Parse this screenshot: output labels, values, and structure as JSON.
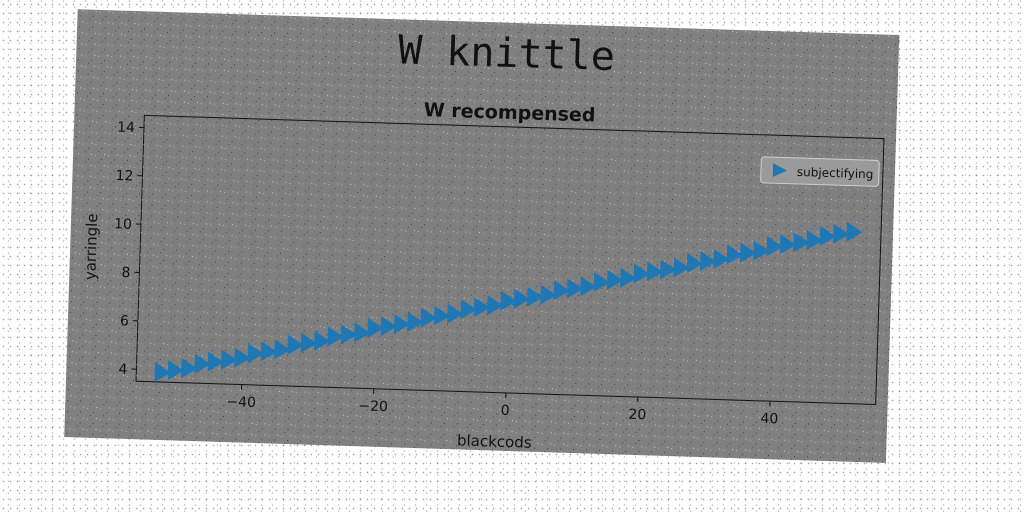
{
  "chart_data": {
    "type": "scatter",
    "title": "W knittle",
    "subtitle": "W recompensed",
    "xlabel": "blackcods",
    "ylabel": "yarringle",
    "xlim": [
      -56,
      56
    ],
    "ylim": [
      3.5,
      14.5
    ],
    "x_ticks": [
      -40,
      -20,
      0,
      20,
      40
    ],
    "y_ticks": [
      4,
      6,
      8,
      10,
      12,
      14
    ],
    "marker": "triangle-right",
    "series": [
      {
        "name": "subjectifying",
        "color": "#1f77b4",
        "x": [
          -52,
          -50,
          -48,
          -46,
          -44,
          -42,
          -40,
          -38,
          -36,
          -34,
          -32,
          -30,
          -28,
          -26,
          -24,
          -22,
          -20,
          -18,
          -16,
          -14,
          -12,
          -10,
          -8,
          -6,
          -4,
          -2,
          0,
          2,
          4,
          6,
          8,
          10,
          12,
          14,
          16,
          18,
          20,
          22,
          24,
          26,
          28,
          30,
          32,
          34,
          36,
          38,
          40,
          42,
          44,
          46,
          48,
          50,
          52
        ],
        "y": [
          3.9,
          4.0,
          4.1,
          4.3,
          4.4,
          4.5,
          4.6,
          4.8,
          4.9,
          5.0,
          5.2,
          5.3,
          5.4,
          5.6,
          5.7,
          5.8,
          6.0,
          6.1,
          6.2,
          6.3,
          6.5,
          6.6,
          6.7,
          6.9,
          7.0,
          7.1,
          7.3,
          7.4,
          7.5,
          7.6,
          7.8,
          7.9,
          8.0,
          8.2,
          8.3,
          8.4,
          8.6,
          8.7,
          8.8,
          8.9,
          9.1,
          9.2,
          9.3,
          9.5,
          9.6,
          9.7,
          9.9,
          10.0,
          10.1,
          10.2,
          10.4,
          10.5,
          10.6
        ]
      }
    ],
    "legend_placement": "top-right",
    "grid": false,
    "colors": {
      "figure_background": "#808080",
      "axes_background": "#7f7f7f",
      "text": "#111111",
      "series": "#1f77b4"
    }
  }
}
